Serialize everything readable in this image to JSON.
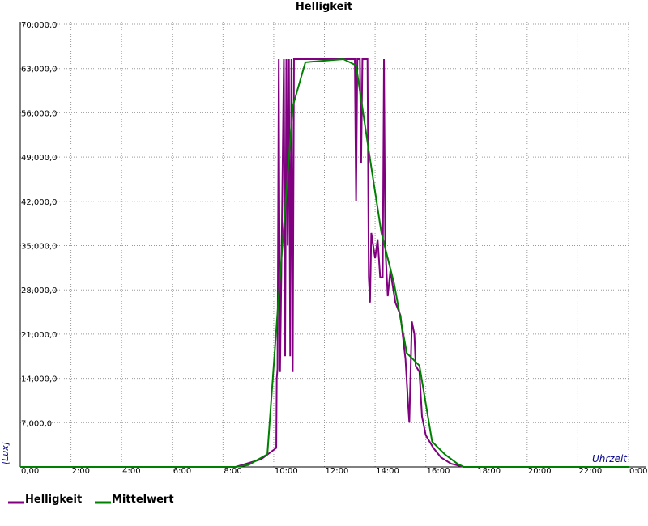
{
  "chart_data": {
    "type": "line",
    "title": "Helligkeit",
    "y_label": "[Lux]",
    "x_label": "Uhrzeit",
    "xlim": [
      0,
      24
    ],
    "xticks": [
      {
        "value": 0,
        "label": "0,00"
      },
      {
        "value": 2,
        "label": "2:00"
      },
      {
        "value": 4,
        "label": "4:00"
      },
      {
        "value": 6,
        "label": "6:00"
      },
      {
        "value": 8,
        "label": "8:00"
      },
      {
        "value": 10,
        "label": "10:00"
      },
      {
        "value": 12,
        "label": "12:00"
      },
      {
        "value": 14,
        "label": "14:00"
      },
      {
        "value": 16,
        "label": "16:00"
      },
      {
        "value": 18,
        "label": "18:00"
      },
      {
        "value": 20,
        "label": "20:00"
      },
      {
        "value": 22,
        "label": "22:00"
      },
      {
        "value": 24,
        "label": "0:00"
      }
    ],
    "ylim": [
      0,
      70000
    ],
    "yticks": [
      {
        "value": 7000,
        "label": "7,000,0"
      },
      {
        "value": 14000,
        "label": "14,000,0"
      },
      {
        "value": 21000,
        "label": "21,000,0"
      },
      {
        "value": 28000,
        "label": "28,000,0"
      },
      {
        "value": 35000,
        "label": "35,000,0"
      },
      {
        "value": 42000,
        "label": "42,000,0"
      },
      {
        "value": 49000,
        "label": "49,000,0"
      },
      {
        "value": 56000,
        "label": "56,000,0"
      },
      {
        "value": 63000,
        "label": "63,000,0"
      },
      {
        "value": 70000,
        "label": "70,000,0"
      }
    ],
    "grid": true,
    "series": [
      {
        "name": "Helligkeit",
        "color": "#800080",
        "x": [
          0,
          8.5,
          9.5,
          10.1,
          10.12,
          10.15,
          10.2,
          10.25,
          10.3,
          10.4,
          10.45,
          10.5,
          10.55,
          10.6,
          10.65,
          10.7,
          10.75,
          10.8,
          13.2,
          13.25,
          13.3,
          13.4,
          13.45,
          13.5,
          13.7,
          13.75,
          13.8,
          13.85,
          14.0,
          14.1,
          14.2,
          14.3,
          14.35,
          14.4,
          14.5,
          14.6,
          14.8,
          15.0,
          15.2,
          15.3,
          15.35,
          15.45,
          15.55,
          15.6,
          15.75,
          15.85,
          16.0,
          16.3,
          16.6,
          17.0,
          17.5,
          24
        ],
        "values": [
          0,
          0,
          1200,
          3000,
          14000,
          15500,
          64500,
          15000,
          30000,
          64500,
          17500,
          64500,
          35000,
          64500,
          17500,
          64500,
          15000,
          64500,
          64500,
          42000,
          64500,
          64500,
          48000,
          64500,
          64500,
          30000,
          26000,
          37000,
          33000,
          36000,
          30000,
          30000,
          64500,
          35000,
          27000,
          31000,
          26000,
          24000,
          17000,
          10000,
          7000,
          23000,
          21000,
          16000,
          15000,
          8000,
          5000,
          3000,
          1500,
          500,
          0,
          0
        ]
      },
      {
        "name": "Mittelwert",
        "color": "#008000",
        "x": [
          0,
          8.5,
          9.0,
          9.75,
          10.25,
          10.75,
          11.25,
          12.75,
          13.25,
          13.75,
          14.25,
          14.75,
          15.25,
          15.75,
          16.25,
          16.75,
          17.25,
          17.5,
          24
        ],
        "values": [
          0,
          0,
          300,
          2000,
          30000,
          57000,
          64000,
          64500,
          63500,
          50000,
          37000,
          29000,
          18000,
          16000,
          4000,
          2000,
          500,
          0,
          0
        ]
      }
    ]
  }
}
